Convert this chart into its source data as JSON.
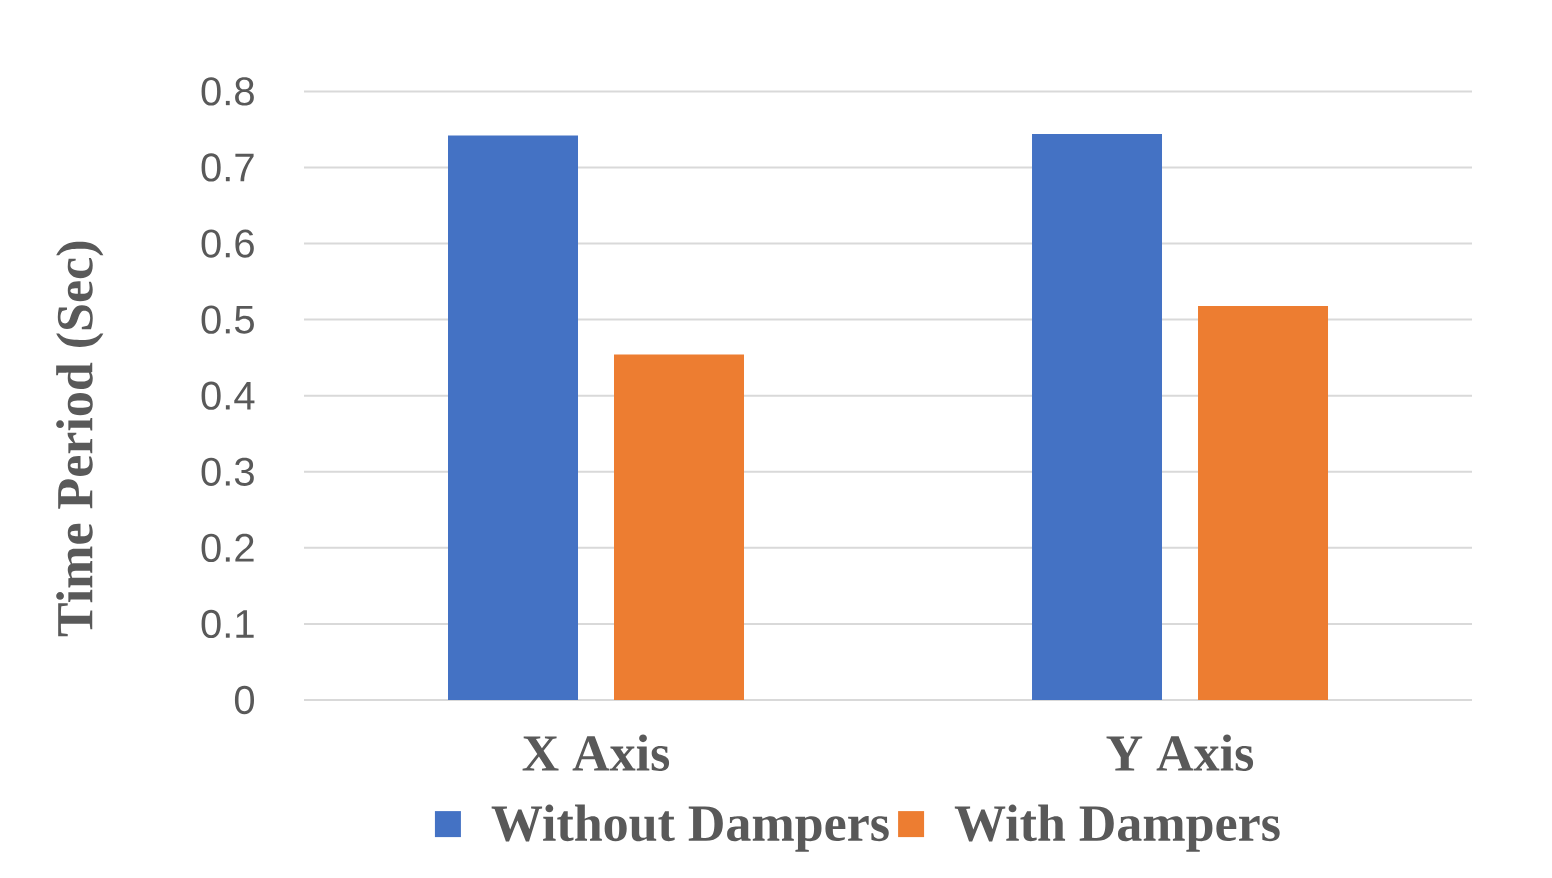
{
  "chart_data": {
    "type": "bar",
    "ylabel": "Time Period (Sec)",
    "categories": [
      "X Axis",
      "Y Axis"
    ],
    "series": [
      {
        "name": "Without Dampers",
        "color": "#4472c4",
        "values": [
          0.742,
          0.744
        ]
      },
      {
        "name": "With Dampers",
        "color": "#ed7d31",
        "values": [
          0.454,
          0.518
        ]
      }
    ],
    "ylim": [
      0,
      0.8
    ],
    "yticks": [
      0,
      0.1,
      0.2,
      0.3,
      0.4,
      0.5,
      0.6,
      0.7,
      0.8
    ],
    "grid": "y",
    "legend": "bottom"
  }
}
